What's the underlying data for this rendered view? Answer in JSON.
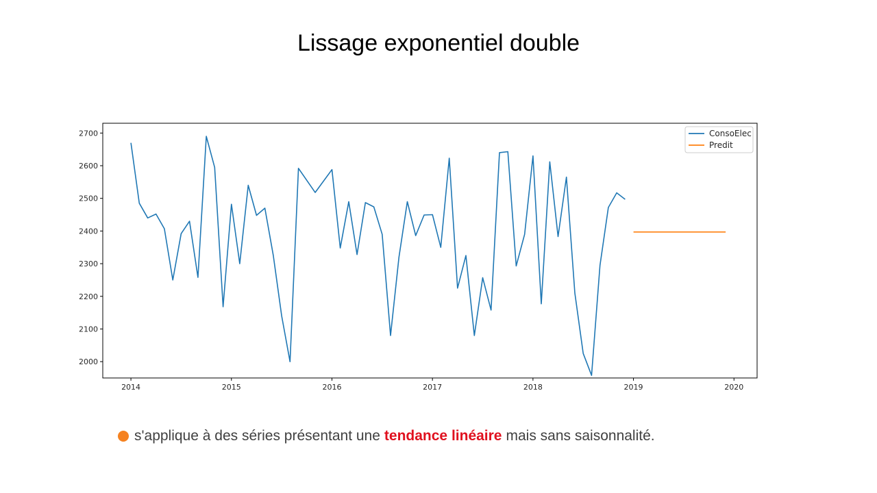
{
  "slide": {
    "title": "Lissage exponentiel double",
    "bullet_color": "#f58220",
    "bullet_text_before": "s'applique à des séries présentant une",
    "bullet_highlight": "tendance linéaire",
    "bullet_highlight_color": "#e0111f",
    "bullet_text_after": "mais sans saisonnalité."
  },
  "chart_data": {
    "type": "line",
    "title": "",
    "xlabel": "",
    "ylabel": "",
    "xlim": [
      2013.72,
      2020.23
    ],
    "ylim": [
      1950,
      2730
    ],
    "x_ticks": [
      2014,
      2015,
      2016,
      2017,
      2018,
      2019,
      2020
    ],
    "y_ticks": [
      2000,
      2100,
      2200,
      2300,
      2400,
      2500,
      2600,
      2700
    ],
    "legend_position": "top-right",
    "grid": false,
    "series": [
      {
        "name": "ConsoElec",
        "color": "#1f77b4",
        "x": [
          2014.0,
          2014.083,
          2014.167,
          2014.25,
          2014.333,
          2014.417,
          2014.5,
          2014.583,
          2014.667,
          2014.75,
          2014.833,
          2014.917,
          2015.0,
          2015.083,
          2015.167,
          2015.25,
          2015.333,
          2015.417,
          2015.5,
          2015.583,
          2015.667,
          2015.833,
          2016.0,
          2016.083,
          2016.167,
          2016.25,
          2016.333,
          2016.417,
          2016.5,
          2016.583,
          2016.667,
          2016.75,
          2016.833,
          2016.917,
          2017.0,
          2017.083,
          2017.167,
          2017.25,
          2017.333,
          2017.417,
          2017.5,
          2017.583,
          2017.667,
          2017.75,
          2017.833,
          2017.917,
          2018.0,
          2018.083,
          2018.167,
          2018.25,
          2018.333,
          2018.417,
          2018.5,
          2018.583,
          2018.667,
          2018.75,
          2018.833,
          2018.917
        ],
        "y": [
          2670,
          2485,
          2440,
          2452,
          2407,
          2250,
          2392,
          2430,
          2258,
          2690,
          2595,
          2168,
          2482,
          2300,
          2540,
          2448,
          2470,
          2325,
          2140,
          2000,
          2592,
          2518,
          2588,
          2348,
          2490,
          2328,
          2487,
          2474,
          2390,
          2080,
          2320,
          2490,
          2386,
          2449,
          2450,
          2350,
          2623,
          2225,
          2325,
          2080,
          2257,
          2158,
          2640,
          2643,
          2293,
          2390,
          2630,
          2177,
          2612,
          2383,
          2565,
          2210,
          2025,
          1958,
          2295,
          2472,
          2517,
          2497
        ]
      },
      {
        "name": "Predit",
        "color": "#ff7f0e",
        "x": [
          2019.0,
          2019.917
        ],
        "y": [
          2397,
          2397
        ]
      }
    ]
  }
}
